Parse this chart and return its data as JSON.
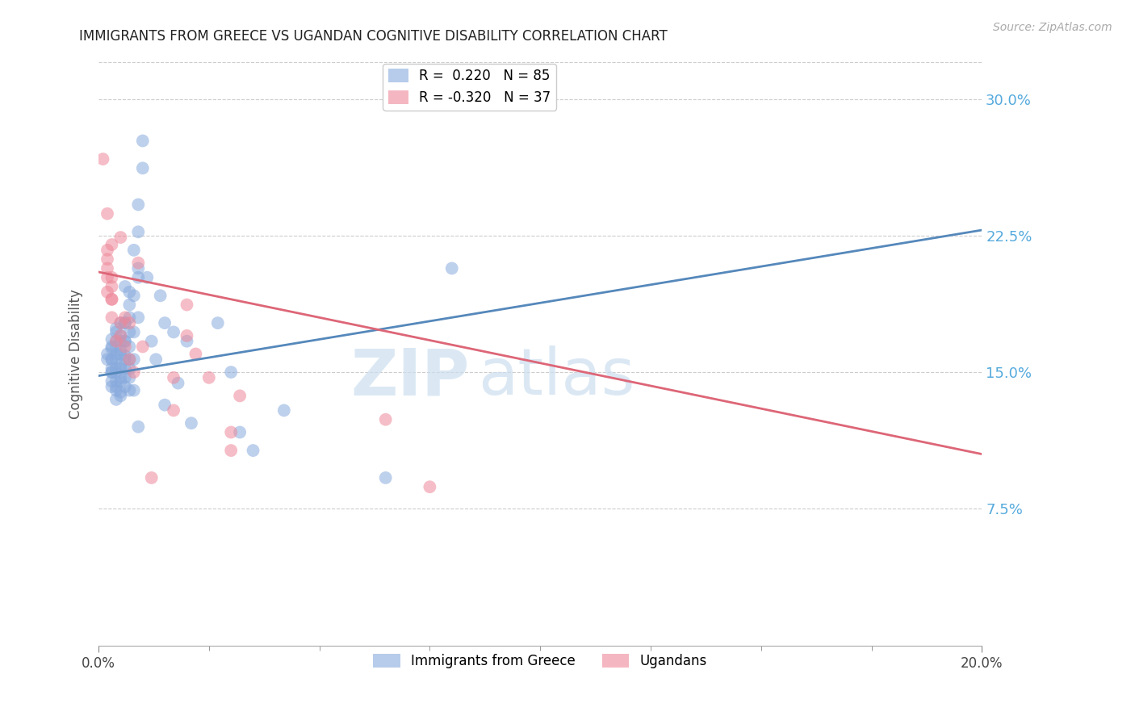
{
  "title": "IMMIGRANTS FROM GREECE VS UGANDAN COGNITIVE DISABILITY CORRELATION CHART",
  "source": "Source: ZipAtlas.com",
  "ylabel": "Cognitive Disability",
  "ytick_labels": [
    "7.5%",
    "15.0%",
    "22.5%",
    "30.0%"
  ],
  "ytick_values": [
    0.075,
    0.15,
    0.225,
    0.3
  ],
  "xlim": [
    0.0,
    0.2
  ],
  "ylim": [
    0.0,
    0.32
  ],
  "watermark_zip": "ZIP",
  "watermark_atlas": "atlas",
  "blue_scatter": [
    [
      0.002,
      0.16
    ],
    [
      0.002,
      0.157
    ],
    [
      0.003,
      0.163
    ],
    [
      0.003,
      0.15
    ],
    [
      0.003,
      0.168
    ],
    [
      0.003,
      0.157
    ],
    [
      0.003,
      0.152
    ],
    [
      0.003,
      0.164
    ],
    [
      0.003,
      0.157
    ],
    [
      0.003,
      0.15
    ],
    [
      0.003,
      0.145
    ],
    [
      0.003,
      0.142
    ],
    [
      0.004,
      0.174
    ],
    [
      0.004,
      0.167
    ],
    [
      0.004,
      0.16
    ],
    [
      0.004,
      0.152
    ],
    [
      0.004,
      0.145
    ],
    [
      0.004,
      0.14
    ],
    [
      0.004,
      0.172
    ],
    [
      0.004,
      0.164
    ],
    [
      0.004,
      0.157
    ],
    [
      0.004,
      0.15
    ],
    [
      0.004,
      0.142
    ],
    [
      0.004,
      0.135
    ],
    [
      0.005,
      0.177
    ],
    [
      0.005,
      0.167
    ],
    [
      0.005,
      0.16
    ],
    [
      0.005,
      0.152
    ],
    [
      0.005,
      0.145
    ],
    [
      0.005,
      0.137
    ],
    [
      0.005,
      0.17
    ],
    [
      0.005,
      0.162
    ],
    [
      0.005,
      0.154
    ],
    [
      0.005,
      0.147
    ],
    [
      0.005,
      0.139
    ],
    [
      0.006,
      0.177
    ],
    [
      0.006,
      0.167
    ],
    [
      0.006,
      0.159
    ],
    [
      0.006,
      0.152
    ],
    [
      0.006,
      0.142
    ],
    [
      0.006,
      0.197
    ],
    [
      0.006,
      0.177
    ],
    [
      0.006,
      0.167
    ],
    [
      0.006,
      0.157
    ],
    [
      0.006,
      0.147
    ],
    [
      0.007,
      0.194
    ],
    [
      0.007,
      0.18
    ],
    [
      0.007,
      0.164
    ],
    [
      0.007,
      0.152
    ],
    [
      0.007,
      0.14
    ],
    [
      0.007,
      0.187
    ],
    [
      0.007,
      0.172
    ],
    [
      0.007,
      0.157
    ],
    [
      0.007,
      0.147
    ],
    [
      0.008,
      0.217
    ],
    [
      0.008,
      0.192
    ],
    [
      0.008,
      0.172
    ],
    [
      0.008,
      0.157
    ],
    [
      0.008,
      0.14
    ],
    [
      0.009,
      0.227
    ],
    [
      0.009,
      0.202
    ],
    [
      0.009,
      0.18
    ],
    [
      0.009,
      0.12
    ],
    [
      0.009,
      0.242
    ],
    [
      0.009,
      0.207
    ],
    [
      0.01,
      0.277
    ],
    [
      0.01,
      0.262
    ],
    [
      0.011,
      0.202
    ],
    [
      0.012,
      0.167
    ],
    [
      0.013,
      0.157
    ],
    [
      0.014,
      0.192
    ],
    [
      0.015,
      0.177
    ],
    [
      0.015,
      0.132
    ],
    [
      0.017,
      0.172
    ],
    [
      0.018,
      0.144
    ],
    [
      0.02,
      0.167
    ],
    [
      0.021,
      0.122
    ],
    [
      0.027,
      0.177
    ],
    [
      0.03,
      0.15
    ],
    [
      0.032,
      0.117
    ],
    [
      0.035,
      0.107
    ],
    [
      0.042,
      0.129
    ],
    [
      0.065,
      0.092
    ],
    [
      0.08,
      0.207
    ]
  ],
  "pink_scatter": [
    [
      0.001,
      0.267
    ],
    [
      0.002,
      0.237
    ],
    [
      0.002,
      0.212
    ],
    [
      0.002,
      0.217
    ],
    [
      0.002,
      0.202
    ],
    [
      0.002,
      0.207
    ],
    [
      0.002,
      0.194
    ],
    [
      0.003,
      0.197
    ],
    [
      0.003,
      0.19
    ],
    [
      0.003,
      0.22
    ],
    [
      0.003,
      0.202
    ],
    [
      0.003,
      0.19
    ],
    [
      0.003,
      0.18
    ],
    [
      0.004,
      0.167
    ],
    [
      0.005,
      0.224
    ],
    [
      0.005,
      0.177
    ],
    [
      0.005,
      0.17
    ],
    [
      0.006,
      0.18
    ],
    [
      0.006,
      0.164
    ],
    [
      0.007,
      0.177
    ],
    [
      0.007,
      0.157
    ],
    [
      0.008,
      0.15
    ],
    [
      0.009,
      0.21
    ],
    [
      0.01,
      0.164
    ],
    [
      0.012,
      0.092
    ],
    [
      0.017,
      0.147
    ],
    [
      0.017,
      0.129
    ],
    [
      0.02,
      0.187
    ],
    [
      0.02,
      0.17
    ],
    [
      0.022,
      0.16
    ],
    [
      0.025,
      0.147
    ],
    [
      0.03,
      0.117
    ],
    [
      0.03,
      0.107
    ],
    [
      0.032,
      0.137
    ],
    [
      0.065,
      0.124
    ],
    [
      0.075,
      0.087
    ]
  ],
  "blue_line_x": [
    0.0,
    0.2
  ],
  "blue_line_y": [
    0.148,
    0.228
  ],
  "pink_line_x": [
    0.0,
    0.2
  ],
  "pink_line_y": [
    0.205,
    0.105
  ],
  "blue_color": "#88aadd",
  "pink_color": "#ee8899",
  "blue_line_color": "#5588bb",
  "pink_line_color": "#dd6677",
  "grid_color": "#cccccc",
  "ytick_color": "#55aadd",
  "background_color": "#ffffff"
}
